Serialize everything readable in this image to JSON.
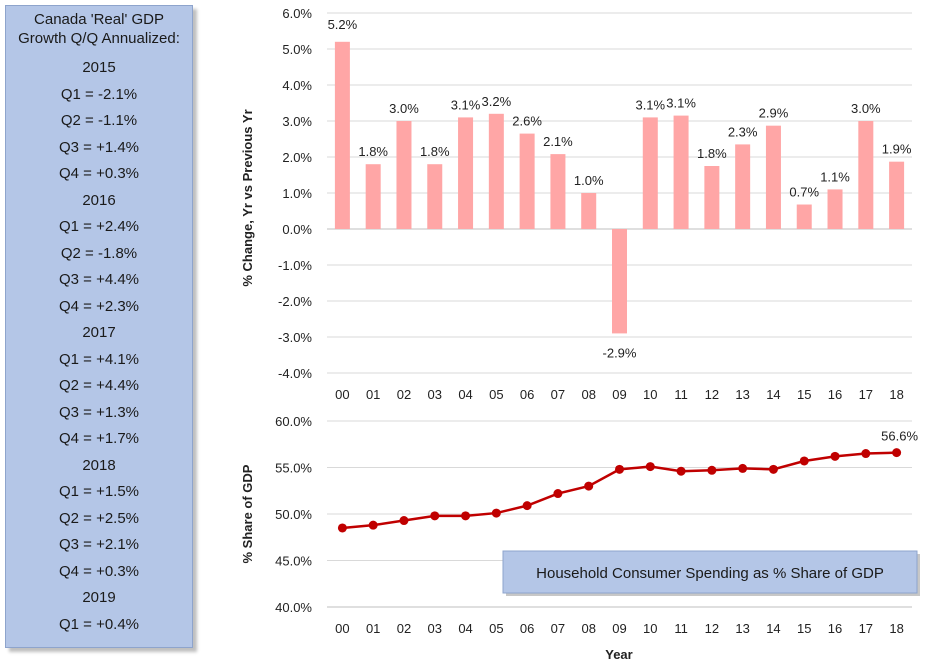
{
  "sidebar": {
    "title_line1": "Canada 'Real' GDP",
    "title_line2": "Growth Q/Q Annualized:",
    "years": [
      {
        "year": "2015",
        "quarters": [
          "Q1 = -2.1%",
          "Q2 = -1.1%",
          "Q3 = +1.4%",
          "Q4 = +0.3%"
        ]
      },
      {
        "year": "2016",
        "quarters": [
          "Q1 = +2.4%",
          "Q2 = -1.8%",
          "Q3 = +4.4%",
          "Q4 = +2.3%"
        ]
      },
      {
        "year": "2017",
        "quarters": [
          "Q1 = +4.1%",
          "Q2 = +4.4%",
          "Q3 = +1.3%",
          "Q4 = +1.7%"
        ]
      },
      {
        "year": "2018",
        "quarters": [
          "Q1 = +1.5%",
          "Q2 = +2.5%",
          "Q3 = +2.1%",
          "Q4 = +0.3%"
        ]
      },
      {
        "year": "2019",
        "quarters": [
          "Q1 = +0.4%"
        ]
      }
    ]
  },
  "chart_data": [
    {
      "type": "bar",
      "title": "",
      "xlabel": "",
      "ylabel": "% Change, Yr vs Previous Yr",
      "categories": [
        "00",
        "01",
        "02",
        "03",
        "04",
        "05",
        "06",
        "07",
        "08",
        "09",
        "10",
        "11",
        "12",
        "13",
        "14",
        "15",
        "16",
        "17",
        "18"
      ],
      "values": [
        5.2,
        1.8,
        3.0,
        1.8,
        3.1,
        3.2,
        2.6,
        2.1,
        1.0,
        -2.9,
        3.1,
        3.1,
        1.8,
        2.3,
        2.9,
        0.7,
        1.1,
        3.0,
        1.9
      ],
      "bar_heights": [
        5.2,
        1.8,
        3.0,
        1.8,
        3.1,
        3.2,
        2.65,
        2.08,
        1.0,
        -2.9,
        3.1,
        3.15,
        1.75,
        2.35,
        2.87,
        0.68,
        1.1,
        3.0,
        1.87
      ],
      "data_labels": [
        "5.2%",
        "1.8%",
        "3.0%",
        "1.8%",
        "3.1%",
        "3.2%",
        "2.6%",
        "2.1%",
        "1.0%",
        "-2.9%",
        "3.1%",
        "3.1%",
        "1.8%",
        "2.3%",
        "2.9%",
        "0.7%",
        "1.1%",
        "3.0%",
        "1.9%"
      ],
      "ylim": [
        -4.0,
        6.0
      ],
      "yticks": [
        "-4.0%",
        "-3.0%",
        "-2.0%",
        "-1.0%",
        "0.0%",
        "1.0%",
        "2.0%",
        "3.0%",
        "4.0%",
        "5.0%",
        "6.0%"
      ],
      "grid": true,
      "color": "#ffa6a6"
    },
    {
      "type": "line",
      "title": "",
      "xlabel": "Year",
      "ylabel": "% Share of GDP",
      "categories": [
        "00",
        "01",
        "02",
        "03",
        "04",
        "05",
        "06",
        "07",
        "08",
        "09",
        "10",
        "11",
        "12",
        "13",
        "14",
        "15",
        "16",
        "17",
        "18"
      ],
      "values": [
        48.5,
        48.8,
        49.3,
        49.8,
        49.8,
        50.1,
        50.9,
        52.2,
        53.0,
        54.8,
        55.1,
        54.6,
        54.7,
        54.9,
        54.8,
        55.7,
        56.2,
        56.5,
        56.6
      ],
      "last_label": "56.6%",
      "ylim": [
        40.0,
        60.0
      ],
      "yticks": [
        "40.0%",
        "45.0%",
        "50.0%",
        "55.0%",
        "60.0%"
      ],
      "grid": true,
      "color": "#c00000",
      "annotation": "Household Consumer Spending as % Share of GDP"
    }
  ]
}
